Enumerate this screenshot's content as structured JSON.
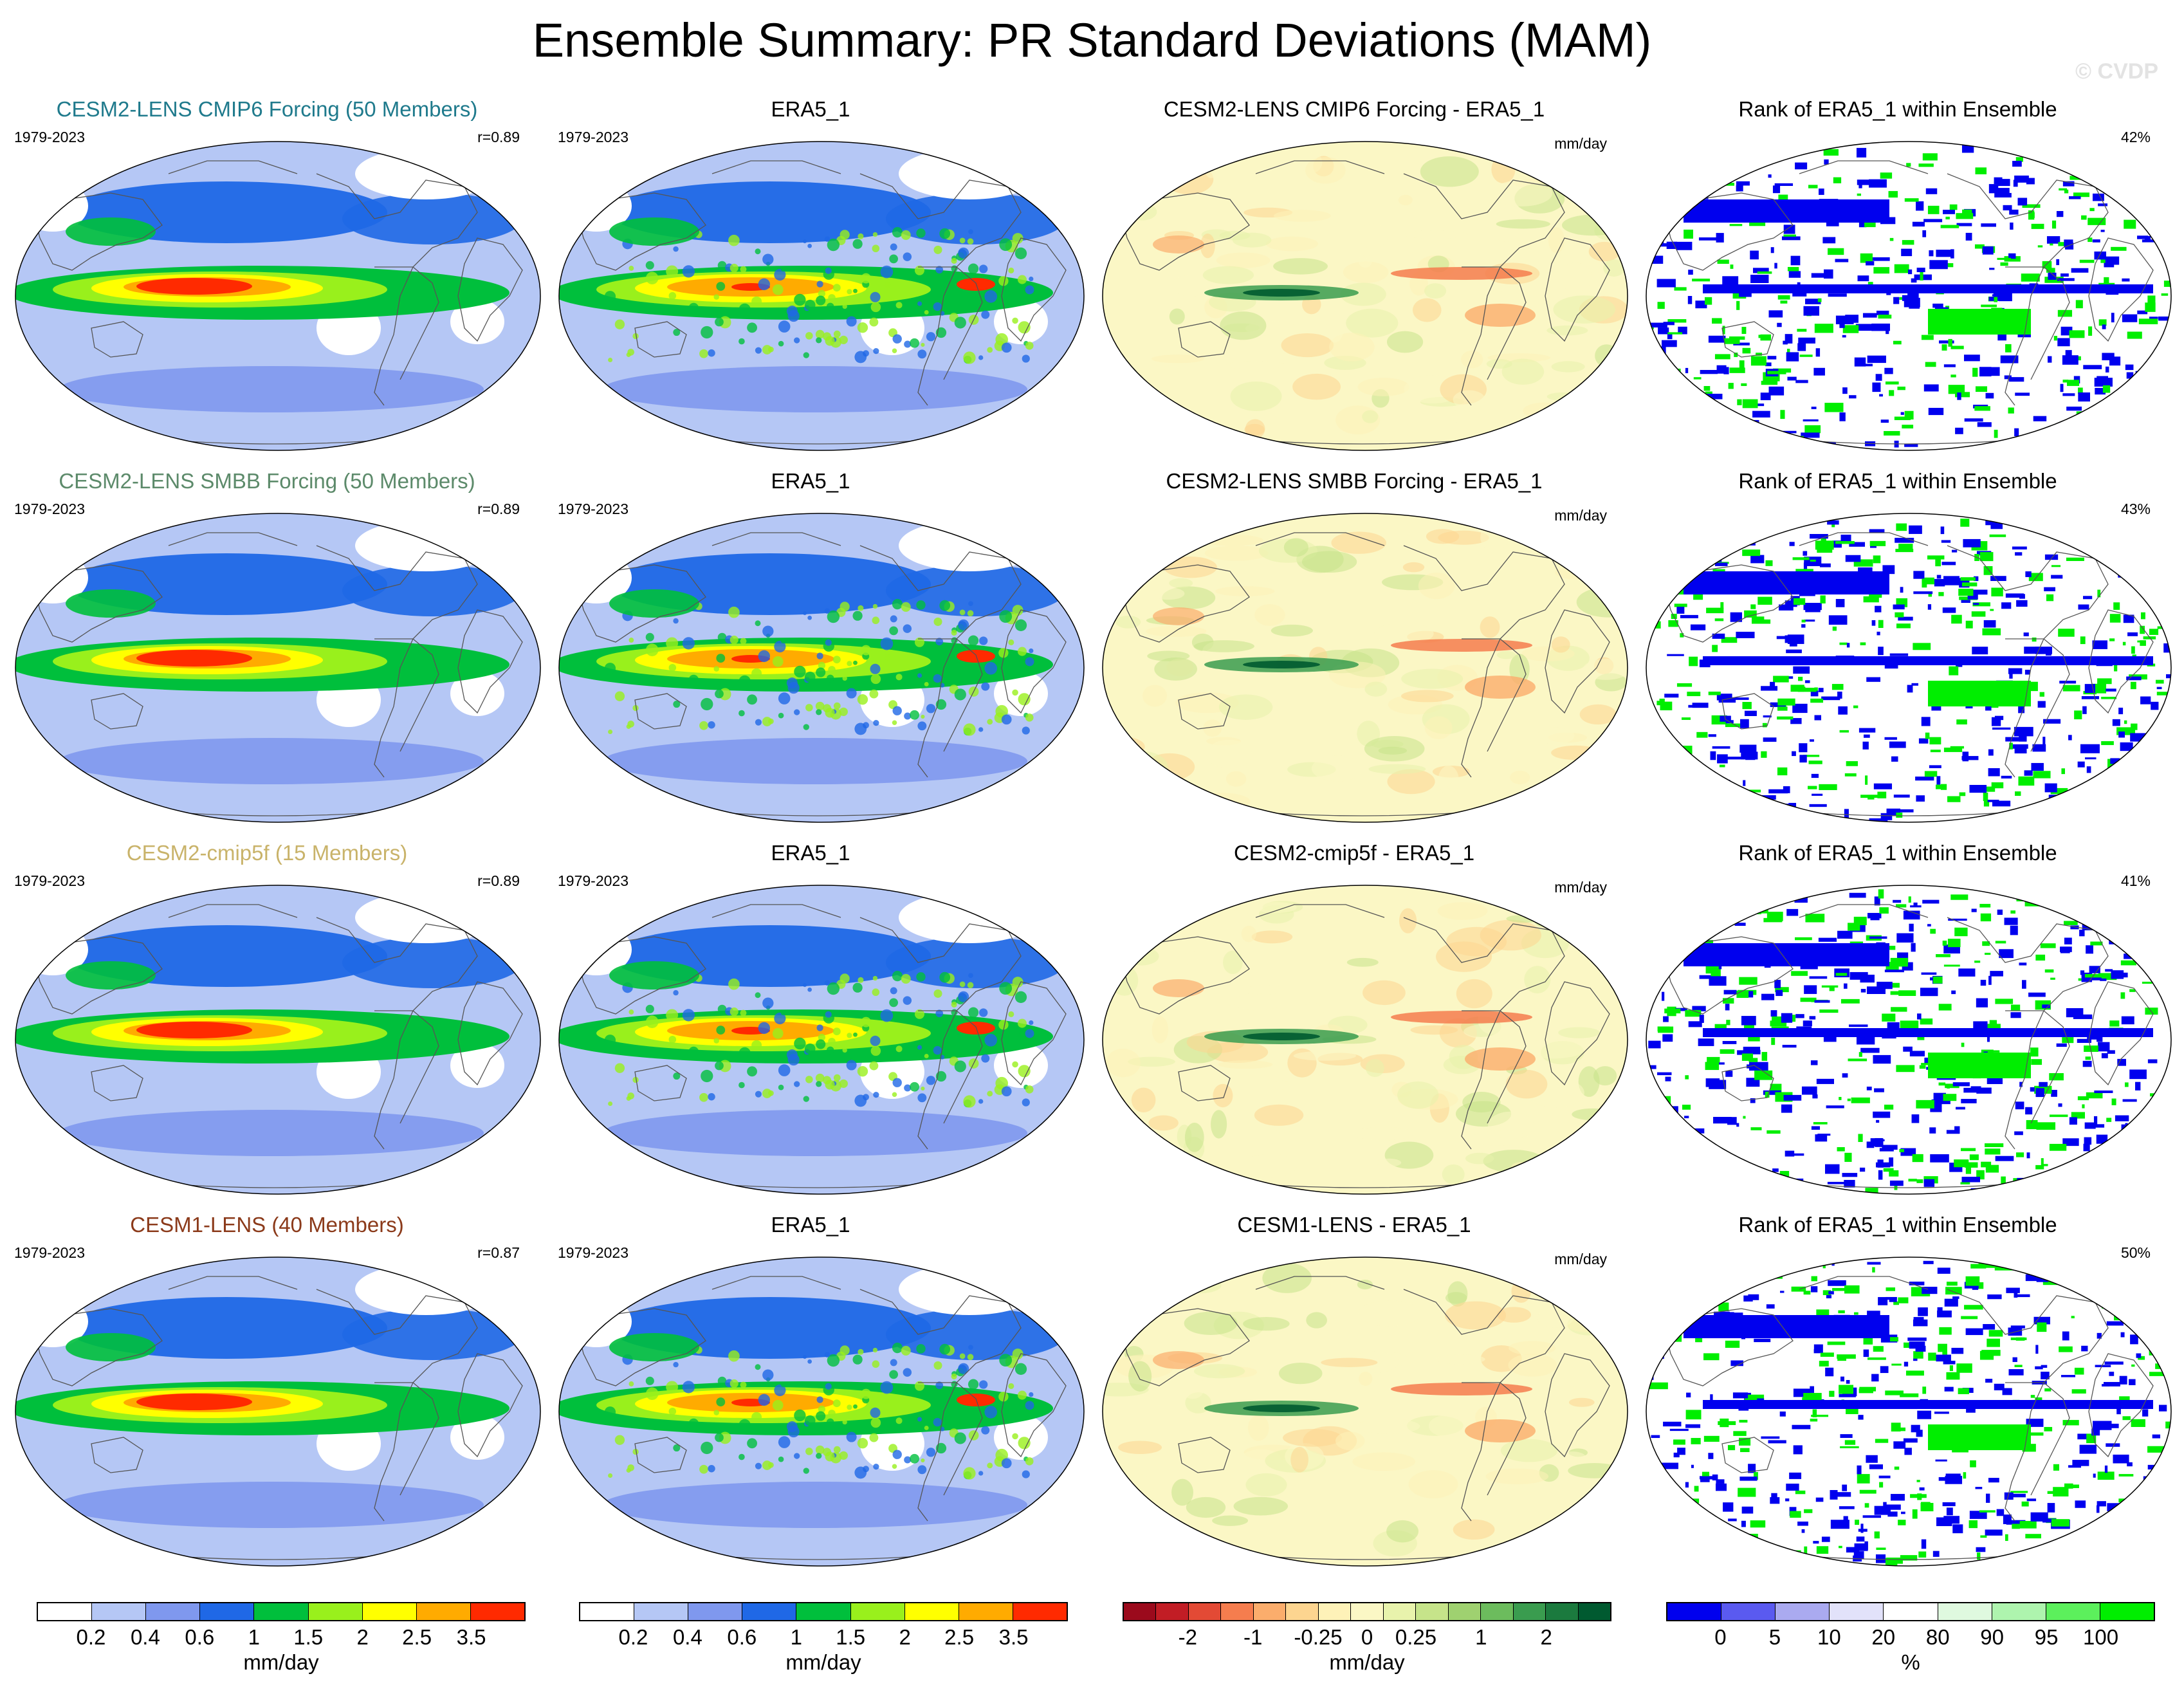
{
  "title": "Ensemble Summary: PR Standard Deviations (MAM)",
  "watermark": "© CVDP",
  "colors": {
    "pr": [
      "#ffffff",
      "#b5c7f5",
      "#7f98ee",
      "#1f68e6",
      "#00bf3c",
      "#99f01c",
      "#ffff00",
      "#ffab00",
      "#ff2a00"
    ],
    "diff": [
      "#9b0a1c",
      "#c21d25",
      "#e34a35",
      "#f57d4e",
      "#fbad6c",
      "#fdd590",
      "#fef2b8",
      "#fbf7c5",
      "#e8f3ac",
      "#c6e48a",
      "#9fd170",
      "#6cbc5d",
      "#3a9c4f",
      "#1b7a3e",
      "#005a30"
    ],
    "rank": [
      "#0000ee",
      "#5a5af0",
      "#aaaaf0",
      "#e2e2fa",
      "#ffffff",
      "#dff9df",
      "#aef4ae",
      "#5cf05c",
      "#00ee00"
    ]
  },
  "rows": [
    {
      "model": {
        "title": "CESM2-LENS CMIP6 Forcing (50 Members)",
        "color": "#1f7a8c",
        "years": "1979-2023",
        "corr": "r=0.89"
      },
      "obs": {
        "title": "ERA5_1",
        "years": "1979-2023"
      },
      "diff": {
        "title": "CESM2-LENS CMIP6 Forcing - ERA5_1",
        "units": "mm/day"
      },
      "rank": {
        "title": "Rank of ERA5_1 within Ensemble",
        "pct": "42%"
      }
    },
    {
      "model": {
        "title": "CESM2-LENS SMBB Forcing (50 Members)",
        "color": "#5c8a6a",
        "years": "1979-2023",
        "corr": "r=0.89"
      },
      "obs": {
        "title": "ERA5_1",
        "years": "1979-2023"
      },
      "diff": {
        "title": "CESM2-LENS SMBB Forcing - ERA5_1",
        "units": "mm/day"
      },
      "rank": {
        "title": "Rank of ERA5_1 within Ensemble",
        "pct": "43%"
      }
    },
    {
      "model": {
        "title": "CESM2-cmip5f (15 Members)",
        "color": "#c9b36a",
        "years": "1979-2023",
        "corr": "r=0.89"
      },
      "obs": {
        "title": "ERA5_1",
        "years": "1979-2023"
      },
      "diff": {
        "title": "CESM2-cmip5f - ERA5_1",
        "units": "mm/day"
      },
      "rank": {
        "title": "Rank of ERA5_1 within Ensemble",
        "pct": "41%"
      }
    },
    {
      "model": {
        "title": "CESM1-LENS (40 Members)",
        "color": "#8b3a1a",
        "years": "1979-2023",
        "corr": "r=0.87"
      },
      "obs": {
        "title": "ERA5_1",
        "years": "1979-2023"
      },
      "diff": {
        "title": "CESM1-LENS - ERA5_1",
        "units": "mm/day"
      },
      "rank": {
        "title": "Rank of ERA5_1 within Ensemble",
        "pct": "50%"
      }
    }
  ],
  "colorbars": {
    "pr": {
      "ticks": [
        "0.2",
        "0.4",
        "0.6",
        "1",
        "1.5",
        "2",
        "2.5",
        "3.5"
      ],
      "units": "mm/day"
    },
    "diff": {
      "ticks": [
        "-2",
        "-1",
        "-0.25",
        "0",
        "0.25",
        "1",
        "2"
      ],
      "units": "mm/day"
    },
    "rank": {
      "ticks": [
        "0",
        "5",
        "10",
        "20",
        "80",
        "90",
        "95",
        "100"
      ],
      "units": "%"
    }
  }
}
